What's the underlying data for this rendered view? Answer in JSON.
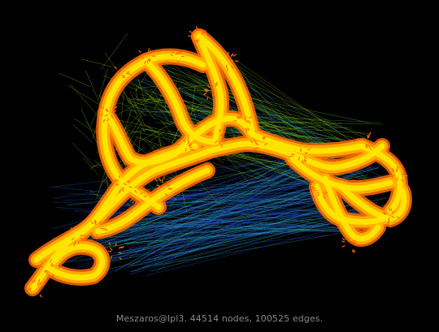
{
  "caption": "Meszaros@lpl3. 44514 nodes, 100525 edges.",
  "colors": {
    "background": "#000000",
    "caption_text": "#8a8a8a",
    "edge_long": "#1f4fd0",
    "edge_mid": "#2fb0b0",
    "edge_short": "#9ee000",
    "node_dense": "#ff6a00",
    "node_core": "#ffe600",
    "node_glow": "#ffb000"
  }
}
